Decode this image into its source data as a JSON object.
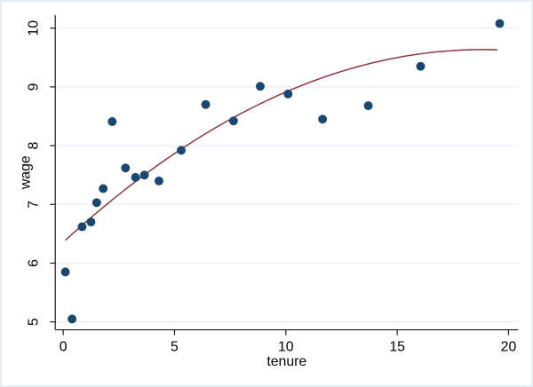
{
  "chart_data": {
    "type": "scatter",
    "title": "",
    "xlabel": "tenure",
    "ylabel": "wage",
    "x_ticks": [
      0,
      5,
      10,
      15,
      20
    ],
    "y_ticks": [
      5,
      6,
      7,
      8,
      9,
      10
    ],
    "xlim": [
      -0.4,
      20.4
    ],
    "ylim": [
      4.85,
      10.25
    ],
    "grid": "horizontal-major",
    "legend": "none",
    "series": [
      {
        "name": "scatter-points",
        "type": "scatter",
        "marker": "filled-circle",
        "color": "#1a476f",
        "points": [
          {
            "x": 0.1,
            "y": 5.85
          },
          {
            "x": 0.4,
            "y": 5.05
          },
          {
            "x": 0.85,
            "y": 6.62
          },
          {
            "x": 1.25,
            "y": 6.7
          },
          {
            "x": 1.5,
            "y": 7.03
          },
          {
            "x": 1.8,
            "y": 7.27
          },
          {
            "x": 2.2,
            "y": 8.41
          },
          {
            "x": 2.8,
            "y": 7.62
          },
          {
            "x": 3.25,
            "y": 7.46
          },
          {
            "x": 3.65,
            "y": 7.5
          },
          {
            "x": 4.3,
            "y": 7.4
          },
          {
            "x": 5.3,
            "y": 7.92
          },
          {
            "x": 6.4,
            "y": 8.7
          },
          {
            "x": 7.65,
            "y": 8.42
          },
          {
            "x": 8.85,
            "y": 9.01
          },
          {
            "x": 10.1,
            "y": 8.88
          },
          {
            "x": 11.65,
            "y": 8.45
          },
          {
            "x": 13.7,
            "y": 8.68
          },
          {
            "x": 16.05,
            "y": 9.35
          },
          {
            "x": 19.6,
            "y": 10.08
          }
        ]
      },
      {
        "name": "quadratic-fit-line",
        "type": "line",
        "color": "#90353b",
        "fit": {
          "form": "a + b*x + c*x^2",
          "a": 6.355,
          "b": 0.3483,
          "c": -0.009246
        },
        "x_start": 0.1,
        "x_end": 19.6
      }
    ],
    "colors": {
      "marker": "#1a476f",
      "fit_line": "#90353b",
      "gridline": "#e7eef5",
      "axis": "#1a1a1a",
      "plot_background": "#ffffff",
      "figure_border": "#e6edf3"
    }
  }
}
